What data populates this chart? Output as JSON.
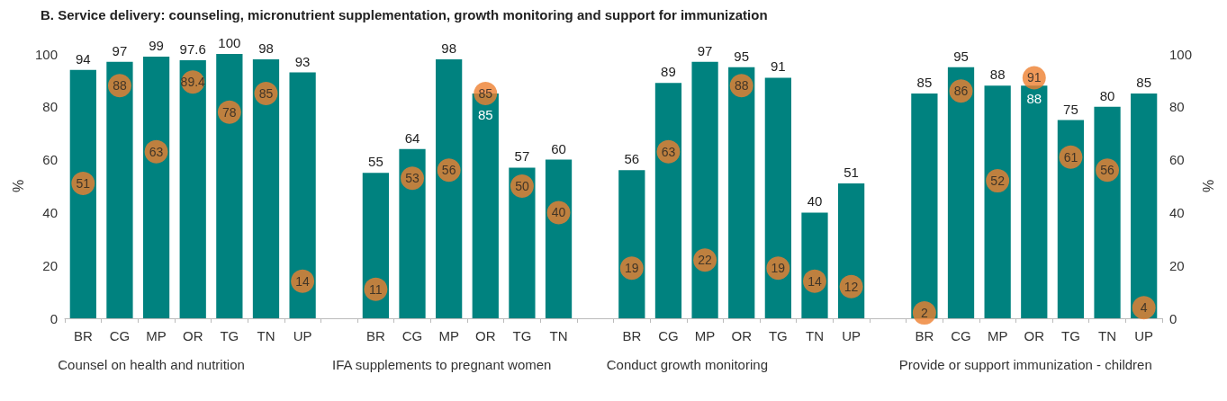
{
  "chart_data": {
    "type": "bar",
    "title": "B. Service delivery: counseling, micronutrient supplementation, growth monitoring and support for immunization",
    "categories": [
      "BR",
      "CG",
      "MP",
      "OR",
      "TG",
      "TN",
      "UP",
      null,
      "BR",
      "CG",
      "MP",
      "OR",
      "TG",
      "TN",
      null,
      "BR",
      "CG",
      "MP",
      "OR",
      "TG",
      "TN",
      "UP",
      null,
      "BR",
      "CG",
      "MP",
      "OR",
      "TG",
      "TN",
      "UP"
    ],
    "series": [
      {
        "color": "#00827f",
        "values": [
          94,
          97,
          99,
          97.6,
          100,
          98,
          93,
          null,
          55,
          64,
          98,
          85,
          57,
          60,
          null,
          56,
          89,
          97,
          95,
          91,
          40,
          51,
          null,
          85,
          95,
          88,
          88,
          75,
          80,
          85
        ]
      },
      {
        "type": "scatter",
        "color": "#ee8030",
        "marker": "circle",
        "values": [
          51,
          88,
          63,
          89.4,
          78,
          85,
          14,
          null,
          11,
          53,
          56,
          85,
          50,
          40,
          null,
          19,
          63,
          22,
          88,
          19,
          14,
          12,
          null,
          2,
          86,
          52,
          91,
          61,
          56,
          4
        ]
      }
    ],
    "annotations": [
      "Counsel on health and nutrition",
      "IFA supplements to pregnant women",
      "Conduct growth monitoring",
      "Provide or support immunization - children"
    ],
    "ylabel": "%",
    "y2label": "%",
    "ylim": [
      0,
      100
    ],
    "yticks": [
      0,
      20,
      40,
      60,
      80,
      100
    ],
    "y2lim": [
      0,
      100
    ],
    "y2ticks": [
      0,
      20,
      40,
      60,
      80,
      100
    ],
    "data_labels": true
  }
}
